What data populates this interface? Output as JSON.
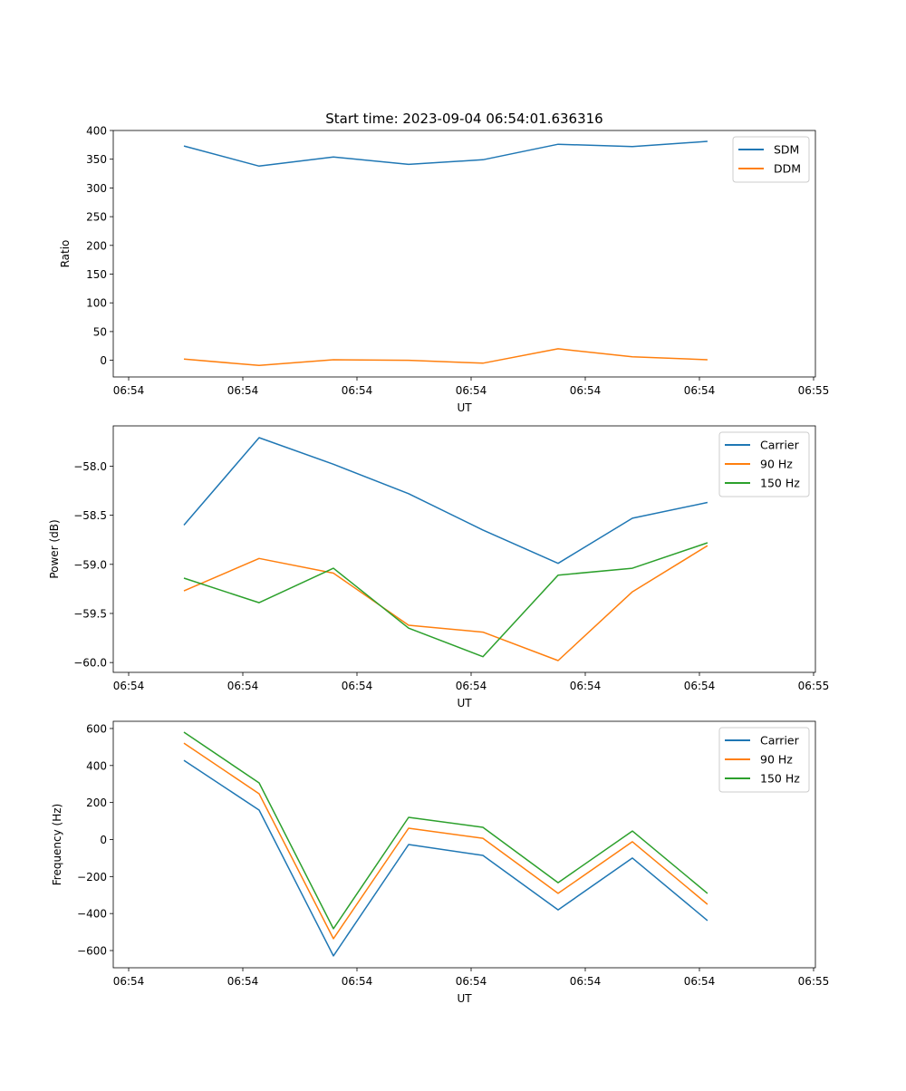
{
  "title": "Start time: 2023-09-04 06:54:01.636316",
  "colors": {
    "c0": "#1f77b4",
    "c1": "#ff7f0e",
    "c2": "#2ca02c"
  },
  "chart_data": [
    {
      "type": "line",
      "title": "Start time: 2023-09-04 06:54:01.636316",
      "xlabel": "UT",
      "ylabel": "Ratio",
      "x_units": "seconds after 06:54:00",
      "x": [
        4.84,
        11.43,
        17.94,
        24.52,
        31.03,
        37.62,
        44.13,
        50.71
      ],
      "xlim": [
        -1.35,
        60.16
      ],
      "xticks": [
        0,
        10,
        20,
        30,
        40,
        50,
        60
      ],
      "xtick_labels": [
        "06:54",
        "06:54",
        "06:54",
        "06:54",
        "06:54",
        "06:54",
        "06:55"
      ],
      "ylim": [
        -29,
        400
      ],
      "yticks": [
        0,
        50,
        100,
        150,
        200,
        250,
        300,
        350,
        400
      ],
      "ytick_labels": [
        "0",
        "50",
        "100",
        "150",
        "200",
        "250",
        "300",
        "350",
        "400"
      ],
      "legend": "top-right",
      "series": [
        {
          "name": "SDM",
          "color": "#1f77b4",
          "values": [
            373,
            338,
            354,
            341,
            349,
            376,
            372,
            381
          ]
        },
        {
          "name": "DDM",
          "color": "#ff7f0e",
          "values": [
            2,
            -9,
            1,
            0,
            -5,
            20,
            6,
            1
          ]
        }
      ]
    },
    {
      "type": "line",
      "xlabel": "UT",
      "ylabel": "Power (dB)",
      "x_units": "seconds after 06:54:00",
      "x": [
        4.84,
        11.43,
        17.94,
        24.52,
        31.03,
        37.62,
        44.13,
        50.71
      ],
      "xlim": [
        -1.35,
        60.16
      ],
      "xticks": [
        0,
        10,
        20,
        30,
        40,
        50,
        60
      ],
      "xtick_labels": [
        "06:54",
        "06:54",
        "06:54",
        "06:54",
        "06:54",
        "06:54",
        "06:55"
      ],
      "ylim": [
        -60.1,
        -57.59
      ],
      "yticks": [
        -60.0,
        -59.5,
        -59.0,
        -58.5,
        -58.0
      ],
      "ytick_labels": [
        "−60.0",
        "−59.5",
        "−59.0",
        "−58.5",
        "−58.0"
      ],
      "legend": "top-right",
      "series": [
        {
          "name": "Carrier",
          "color": "#1f77b4",
          "values": [
            -58.6,
            -57.71,
            -57.98,
            -58.28,
            -58.65,
            -58.99,
            -58.53,
            -58.37
          ]
        },
        {
          "name": "90 Hz",
          "color": "#ff7f0e",
          "values": [
            -59.27,
            -58.94,
            -59.09,
            -59.62,
            -59.69,
            -59.98,
            -59.28,
            -58.81
          ]
        },
        {
          "name": "150 Hz",
          "color": "#2ca02c",
          "values": [
            -59.14,
            -59.39,
            -59.04,
            -59.65,
            -59.94,
            -59.11,
            -59.04,
            -58.78
          ]
        }
      ]
    },
    {
      "type": "line",
      "xlabel": "UT",
      "ylabel": "Frequency (Hz)",
      "x_units": "seconds after 06:54:00",
      "x": [
        4.84,
        11.43,
        17.94,
        24.52,
        31.03,
        37.62,
        44.13,
        50.71
      ],
      "xlim": [
        -1.35,
        60.16
      ],
      "xticks": [
        0,
        10,
        20,
        30,
        40,
        50,
        60
      ],
      "xtick_labels": [
        "06:54",
        "06:54",
        "06:54",
        "06:54",
        "06:54",
        "06:54",
        "06:55"
      ],
      "ylim": [
        -693,
        639
      ],
      "yticks": [
        -600,
        -400,
        -200,
        0,
        200,
        400,
        600
      ],
      "ytick_labels": [
        "−600",
        "−400",
        "−200",
        "0",
        "200",
        "400",
        "600"
      ],
      "legend": "top-right",
      "series": [
        {
          "name": "Carrier",
          "color": "#1f77b4",
          "values": [
            428,
            159,
            -629,
            -27,
            -86,
            -380,
            -100,
            -438
          ]
        },
        {
          "name": "90 Hz",
          "color": "#ff7f0e",
          "values": [
            521,
            247,
            -536,
            61,
            7,
            -291,
            -12,
            -350
          ]
        },
        {
          "name": "150 Hz",
          "color": "#2ca02c",
          "values": [
            580,
            306,
            -482,
            120,
            66,
            -233,
            46,
            -291
          ]
        }
      ]
    }
  ]
}
